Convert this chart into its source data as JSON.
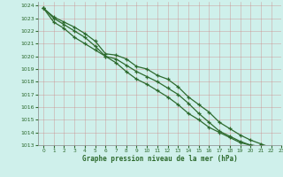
{
  "title": "Graphe pression niveau de la mer (hPa)",
  "background_color": "#cff0eb",
  "grid_color": "#bbbbbb",
  "grid_color_minor": "#dddddd",
  "line_color": "#2d6a2d",
  "xlim": [
    -0.5,
    23
  ],
  "ylim": [
    1013,
    1024.3
  ],
  "xticks": [
    0,
    1,
    2,
    3,
    4,
    5,
    6,
    7,
    8,
    9,
    10,
    11,
    12,
    13,
    14,
    15,
    16,
    17,
    18,
    19,
    20,
    21,
    22,
    23
  ],
  "yticks": [
    1013,
    1014,
    1015,
    1016,
    1017,
    1018,
    1019,
    1020,
    1021,
    1022,
    1023,
    1024
  ],
  "series": [
    [
      1023.8,
      1023.1,
      1022.7,
      1022.3,
      1021.8,
      1021.2,
      1020.2,
      1020.1,
      1019.8,
      1019.2,
      1019.0,
      1018.5,
      1018.2,
      1017.6,
      1016.8,
      1016.2,
      1015.6,
      1014.8,
      1014.3,
      1013.8,
      1013.4,
      1013.1,
      1012.8,
      1012.7
    ],
    [
      1023.8,
      1023.0,
      1022.5,
      1022.0,
      1021.5,
      1020.8,
      1020.0,
      1019.5,
      1018.8,
      1018.2,
      1017.8,
      1017.3,
      1016.8,
      1016.2,
      1015.5,
      1015.0,
      1014.4,
      1014.0,
      1013.6,
      1013.2,
      1013.0,
      1012.9,
      1012.8,
      1012.7
    ],
    [
      1023.8,
      1022.7,
      1022.2,
      1021.5,
      1021.0,
      1020.5,
      1020.0,
      1019.8,
      1019.3,
      1018.8,
      1018.4,
      1018.0,
      1017.5,
      1017.0,
      1016.3,
      1015.5,
      1014.8,
      1014.1,
      1013.7,
      1013.3,
      1013.0,
      1012.9,
      1012.75,
      1012.65
    ]
  ]
}
